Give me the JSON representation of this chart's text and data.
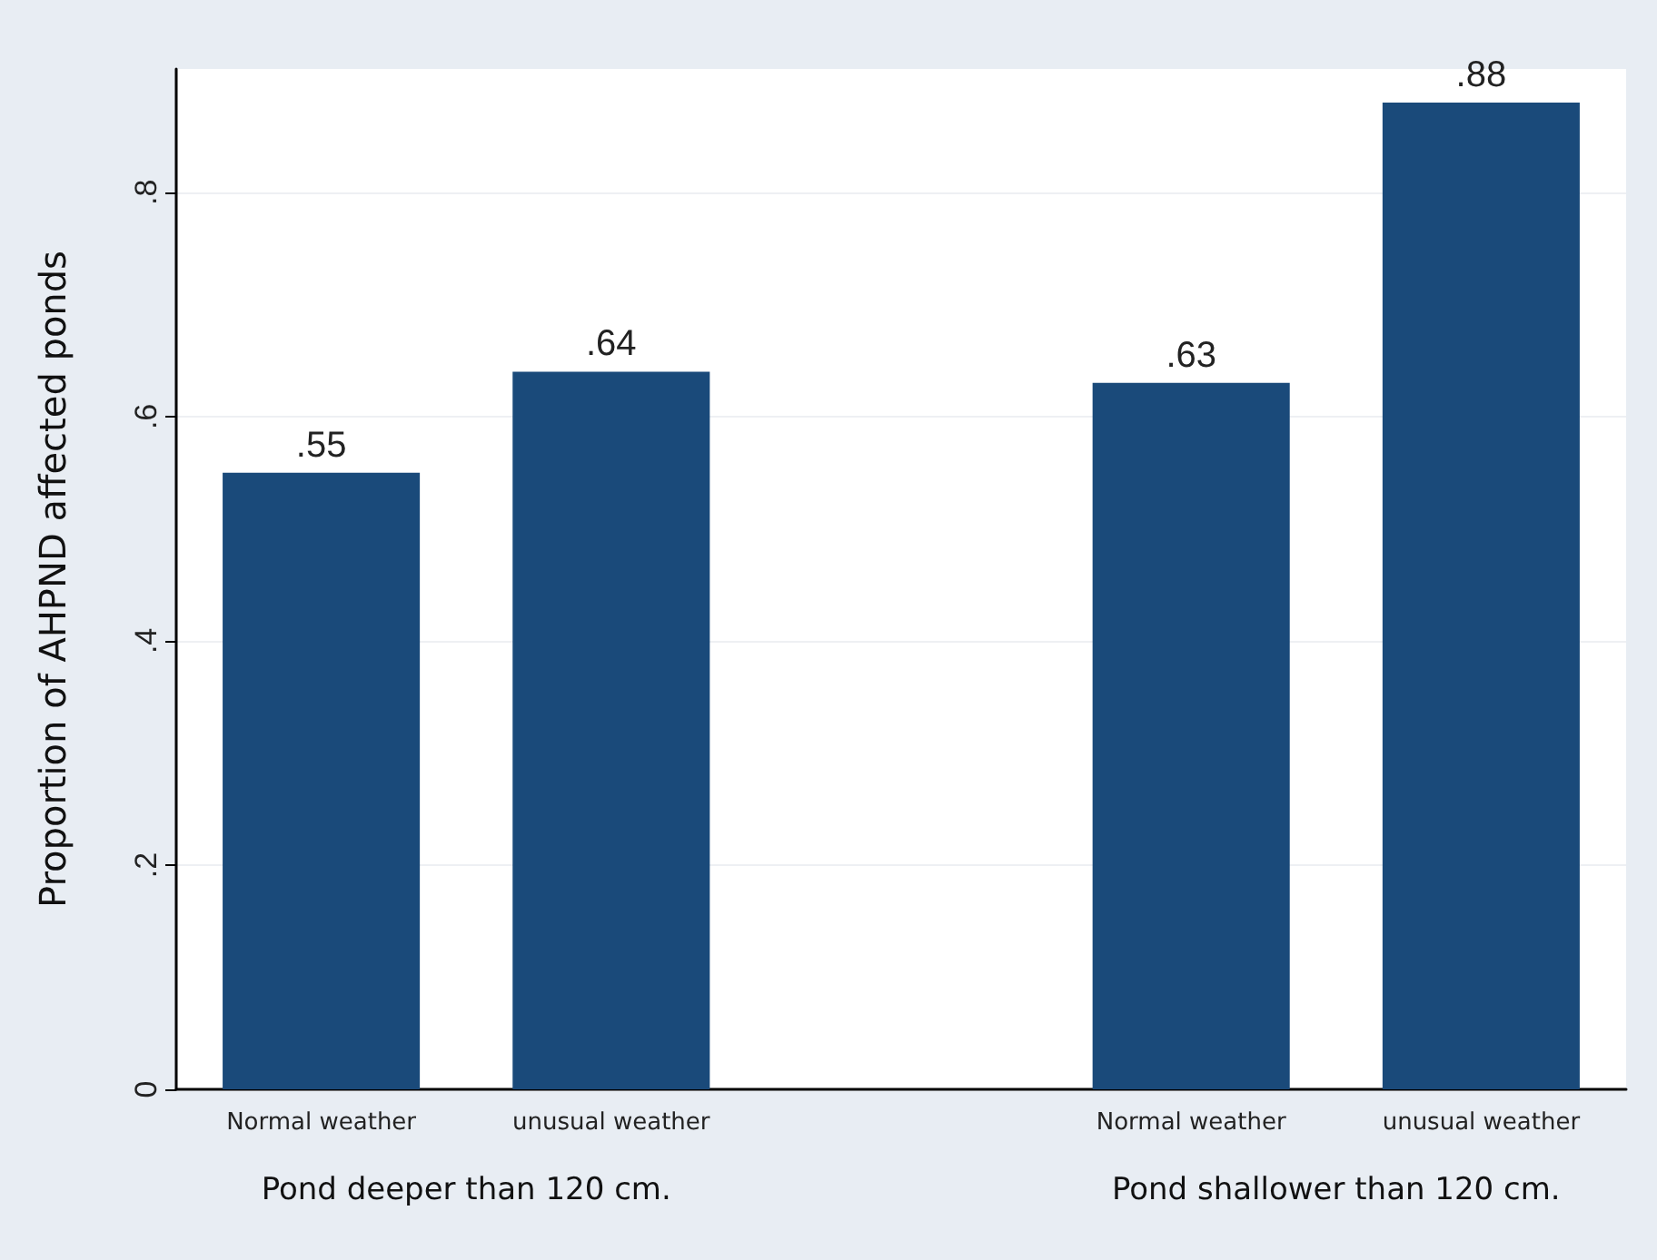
{
  "chart_data": {
    "type": "bar",
    "ylabel": "Proportion of AHPND affected ponds",
    "categories": [
      "Normal weather",
      "unusual weather",
      null,
      "Normal weather",
      "unusual weather"
    ],
    "values": [
      0.55,
      0.64,
      null,
      0.63,
      0.88
    ],
    "value_labels": [
      ".55",
      ".64",
      null,
      ".63",
      ".88"
    ],
    "color": "#1a4a7a",
    "ylim": [
      0,
      0.91
    ],
    "yticks": [
      {
        "value": 0,
        "label": "0"
      },
      {
        "value": 0.2,
        "label": ".2"
      },
      {
        "value": 0.4,
        "label": ".4"
      },
      {
        "value": 0.6,
        "label": ".6"
      },
      {
        "value": 0.8,
        "label": ".8"
      }
    ],
    "grid": "y",
    "annotations": [
      "Pond deeper than 120 cm.",
      "Pond shallower than 120 cm."
    ]
  }
}
